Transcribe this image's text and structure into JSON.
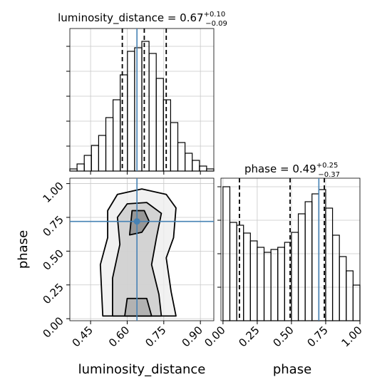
{
  "chart_data": [
    {
      "type": "histogram",
      "title": "luminosity_distance = 0.67",
      "title_upper": "+0.10",
      "title_lower": "−0.09",
      "bins": [
        0.365,
        0.3945,
        0.424,
        0.4535,
        0.483,
        0.5125,
        0.542,
        0.5715,
        0.601,
        0.6305,
        0.66,
        0.6895,
        0.719,
        0.7485,
        0.778,
        0.8075,
        0.837,
        0.8665,
        0.896,
        0.9255,
        0.955
      ],
      "values": [
        3,
        10,
        22,
        36,
        50,
        75,
        100,
        135,
        168,
        173,
        182,
        165,
        130,
        100,
        68,
        40,
        25,
        15,
        7,
        3
      ],
      "xlim": [
        0.365,
        0.955
      ],
      "ylim": [
        0,
        200
      ],
      "xticks": [
        0.45,
        0.6,
        0.75,
        0.9
      ],
      "yticks": [
        35,
        70,
        105,
        140,
        175
      ],
      "quantiles": [
        0.58,
        0.67,
        0.76
      ],
      "truth": 0.64,
      "color": "#000000",
      "truth_color": "#4682b4",
      "grid": true
    },
    {
      "type": "contour",
      "x_label": "luminosity_distance",
      "y_label": "phase",
      "xlim": [
        0.365,
        0.955
      ],
      "ylim": [
        -0.015,
        1.04
      ],
      "xticks": [
        {
          "value": 0.45,
          "label": "0.45"
        },
        {
          "value": 0.6,
          "label": "0.60"
        },
        {
          "value": 0.75,
          "label": "0.75"
        },
        {
          "value": 0.9,
          "label": "0.90"
        }
      ],
      "yticks": [
        {
          "value": 0,
          "label": "0.00"
        },
        {
          "value": 0.25,
          "label": "0.25"
        },
        {
          "value": 0.5,
          "label": "0.50"
        },
        {
          "value": 0.75,
          "label": "0.75"
        },
        {
          "value": 1,
          "label": "1.00"
        }
      ],
      "contours": [
        {
          "x": [
            0.5,
            0.49,
            0.52,
            0.52,
            0.56,
            0.66,
            0.76,
            0.8,
            0.79,
            0.76,
            0.78,
            0.8
          ],
          "y": [
            0.02,
            0.4,
            0.6,
            0.8,
            0.92,
            0.96,
            0.92,
            0.82,
            0.6,
            0.45,
            0.2,
            0.02
          ]
        },
        {
          "x": [
            0.54,
            0.54,
            0.57,
            0.56,
            0.6,
            0.68,
            0.74,
            0.72,
            0.7,
            0.73,
            0.74
          ],
          "y": [
            0.02,
            0.3,
            0.55,
            0.75,
            0.85,
            0.86,
            0.78,
            0.6,
            0.4,
            0.18,
            0.02
          ]
        },
        {
          "x": [
            0.61,
            0.62,
            0.67,
            0.69,
            0.66
          ],
          "y": [
            0.62,
            0.8,
            0.8,
            0.72,
            0.64
          ]
        },
        {
          "x": [
            0.59,
            0.6,
            0.68,
            0.7
          ],
          "y": [
            0.02,
            0.15,
            0.15,
            0.02
          ]
        }
      ],
      "truth_x": 0.64,
      "truth_y": 0.72,
      "truth_color": "#4682b4",
      "grid": true
    },
    {
      "type": "histogram",
      "title": "phase = 0.49",
      "title_upper": "+0.25",
      "title_lower": "−0.37",
      "x_label": "phase",
      "bins": [
        0,
        0.05,
        0.1,
        0.15,
        0.2,
        0.25,
        0.3,
        0.35,
        0.4,
        0.45,
        0.5,
        0.55,
        0.6,
        0.65,
        0.7,
        0.75,
        0.8,
        0.85,
        0.9,
        0.95,
        1.0
      ],
      "values": [
        188,
        138,
        134,
        123,
        112,
        103,
        96,
        100,
        103,
        110,
        124,
        150,
        167,
        178,
        184,
        158,
        120,
        90,
        70,
        50
      ],
      "xlim": [
        -0.015,
        1.0
      ],
      "ylim": [
        0,
        200
      ],
      "xticks": [
        {
          "value": 0,
          "label": "0.00"
        },
        {
          "value": 0.25,
          "label": "0.25"
        },
        {
          "value": 0.5,
          "label": "0.50"
        },
        {
          "value": 0.75,
          "label": "0.75"
        },
        {
          "value": 1,
          "label": "1.00"
        }
      ],
      "yticks": [
        47,
        94,
        141,
        188
      ],
      "quantiles": [
        0.12,
        0.49,
        0.74
      ],
      "truth": 0.7,
      "color": "#000000",
      "truth_color": "#4682b4",
      "grid": true
    }
  ]
}
